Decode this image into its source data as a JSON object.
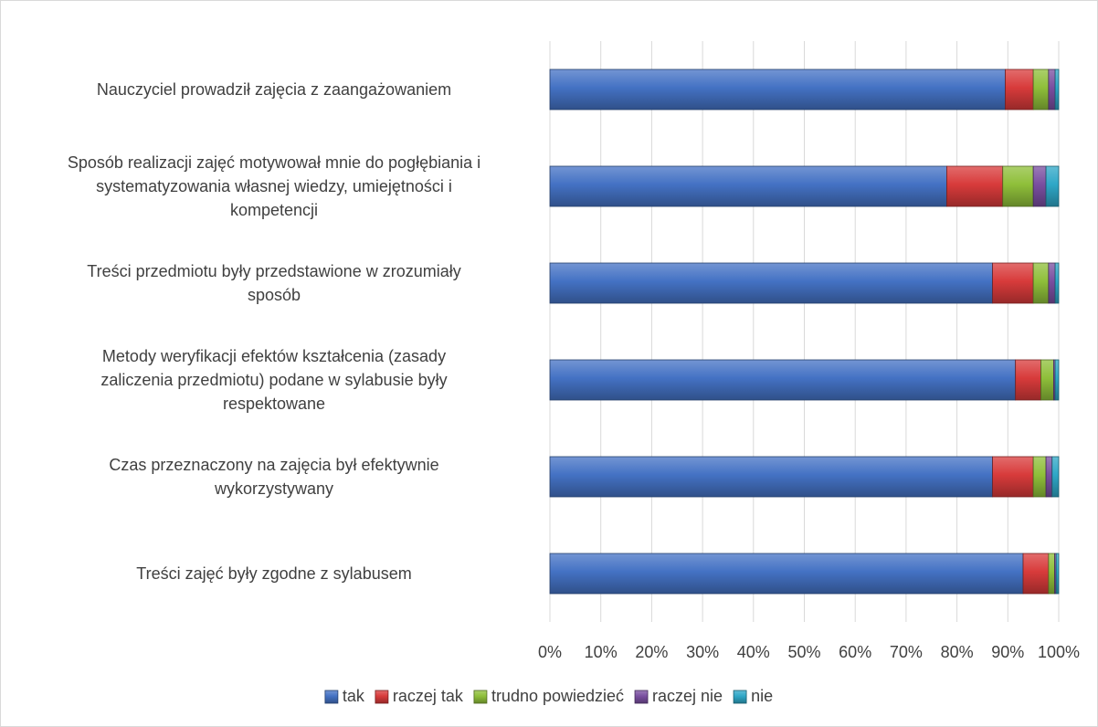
{
  "chart_data": {
    "type": "bar",
    "orientation": "horizontal",
    "stacked": "percent",
    "categories": [
      "Nauczyciel prowadził zajęcia z zaangażowaniem",
      "Sposób realizacji zajęć motywował mnie do pogłębiania i systematyzowania własnej wiedzy, umiejętności i kompetencji",
      "Treści przedmiotu były przedstawione w zrozumiały sposób",
      "Metody weryfikacji efektów kształcenia (zasady zaliczenia przedmiotu) podane w sylabusie były respektowane",
      "Czas przeznaczony na zajęcia był efektywnie wykorzystywany",
      "Treści zajęć były zgodne z sylabusem"
    ],
    "category_lines": [
      [
        "Nauczyciel prowadził zajęcia z zaangażowaniem"
      ],
      [
        "Sposób realizacji zajęć motywował mnie do pogłębiania i",
        "systematyzowania własnej wiedzy, umiejętności i",
        "kompetencji"
      ],
      [
        "Treści przedmiotu były przedstawione w zrozumiały",
        "sposób"
      ],
      [
        "Metody weryfikacji efektów kształcenia (zasady",
        "zaliczenia przedmiotu) podane w sylabusie były",
        "respektowane"
      ],
      [
        "Czas przeznaczony na zajęcia był efektywnie",
        "wykorzystywany"
      ],
      [
        "Treści zajęć były zgodne z sylabusem"
      ]
    ],
    "series": [
      {
        "name": "tak",
        "color": "#4472c4",
        "values": [
          89.5,
          78,
          87,
          91.5,
          87,
          93
        ]
      },
      {
        "name": "raczej tak",
        "color": "#d83b3b",
        "values": [
          5.5,
          11,
          8,
          5,
          8,
          5
        ]
      },
      {
        "name": "trudno powiedzieć",
        "color": "#8fbf3a",
        "values": [
          3,
          6,
          3,
          2.5,
          2.5,
          1.2
        ]
      },
      {
        "name": "raczej nie",
        "color": "#7a4fa0",
        "values": [
          1.3,
          2.5,
          1.3,
          0.3,
          1.2,
          0.3
        ]
      },
      {
        "name": "nie",
        "color": "#2fa7c7",
        "values": [
          0.7,
          2.5,
          0.7,
          0.7,
          1.3,
          0.5
        ]
      }
    ],
    "xlim": [
      0,
      100
    ],
    "x_ticks": [
      "0%",
      "10%",
      "20%",
      "30%",
      "40%",
      "50%",
      "60%",
      "70%",
      "80%",
      "90%",
      "100%"
    ],
    "grid": true,
    "legend_position": "bottom",
    "title": "",
    "xlabel": "",
    "ylabel": ""
  }
}
